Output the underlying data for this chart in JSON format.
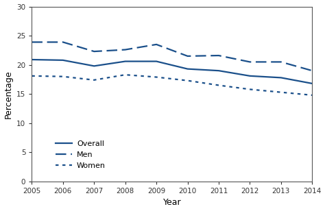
{
  "years": [
    2005,
    2006,
    2007,
    2008,
    2009,
    2010,
    2011,
    2012,
    2013,
    2014
  ],
  "overall": [
    20.9,
    20.8,
    19.8,
    20.6,
    20.6,
    19.3,
    19.0,
    18.1,
    17.8,
    16.8
  ],
  "men": [
    23.9,
    23.9,
    22.3,
    22.6,
    23.5,
    21.5,
    21.6,
    20.5,
    20.5,
    19.0
  ],
  "women": [
    18.1,
    18.0,
    17.4,
    18.3,
    17.9,
    17.3,
    16.5,
    15.8,
    15.3,
    14.8
  ],
  "line_color": "#1a4f8a",
  "ylim": [
    0,
    30
  ],
  "yticks": [
    0,
    5,
    10,
    15,
    20,
    25,
    30
  ],
  "xlabel": "Year",
  "ylabel": "Percentage",
  "legend_labels": [
    "Overall",
    "Men",
    "Women"
  ]
}
